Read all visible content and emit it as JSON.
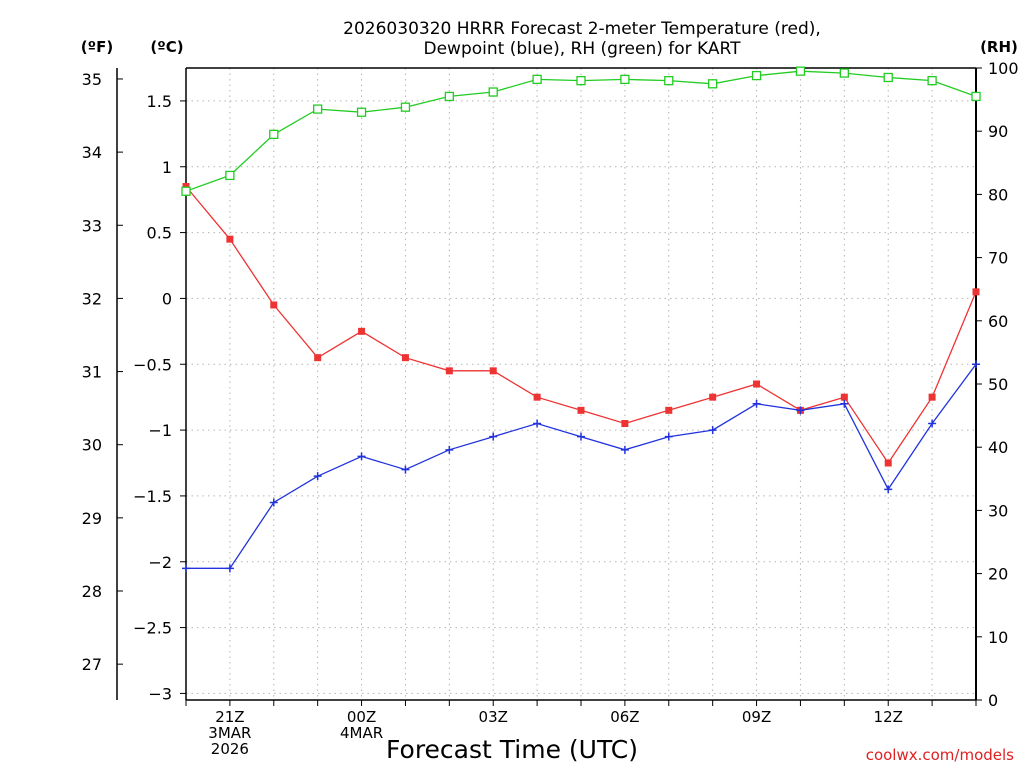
{
  "chart_data": {
    "type": "line",
    "title_lines": [
      "2026030320 HRRR Forecast 2-meter Temperature (red),",
      "Dewpoint (blue), RH (green) for KART"
    ],
    "xlabel": "Forecast Time (UTC)",
    "credit": "coolwx.com/models",
    "units": {
      "fahrenheit": "(ºF)",
      "celsius": "(ºC)",
      "rh": "(RH)"
    },
    "celsius_axis": {
      "lim": [
        -3.05,
        1.75
      ],
      "ticks": [
        1.5,
        1,
        0.5,
        0,
        -0.5,
        -1,
        -1.5,
        -2,
        -2.5,
        -3
      ],
      "tick_labels": [
        "1.5",
        "1",
        "0.5",
        "0",
        "−0.5",
        "−1",
        "−1.5",
        "−2",
        "−2.5",
        "−3"
      ]
    },
    "fahrenheit_axis": {
      "ticks": [
        35,
        34,
        33,
        32,
        31,
        30,
        29,
        28,
        27
      ],
      "tick_labels": [
        "35",
        "34",
        "33",
        "32",
        "31",
        "30",
        "29",
        "28",
        "27"
      ]
    },
    "rh_axis": {
      "lim": [
        0,
        100
      ],
      "ticks": [
        100,
        90,
        80,
        70,
        60,
        50,
        40,
        30,
        20,
        10,
        0
      ],
      "tick_labels": [
        "100",
        "90",
        "80",
        "70",
        "60",
        "50",
        "40",
        "30",
        "20",
        "10",
        "0"
      ]
    },
    "x_hours": [
      20,
      21,
      22,
      23,
      24,
      25,
      26,
      27,
      28,
      29,
      30,
      31,
      32,
      33,
      34,
      35,
      36,
      37,
      38
    ],
    "x_lim": [
      20,
      38
    ],
    "x_tick_labels": [
      {
        "hour": 21,
        "lines": [
          "21Z",
          "3MAR",
          "2026"
        ]
      },
      {
        "hour": 24,
        "lines": [
          "00Z",
          "4MAR"
        ]
      },
      {
        "hour": 27,
        "lines": [
          "03Z"
        ]
      },
      {
        "hour": 30,
        "lines": [
          "06Z"
        ]
      },
      {
        "hour": 33,
        "lines": [
          "09Z"
        ]
      },
      {
        "hour": 36,
        "lines": [
          "12Z"
        ]
      }
    ],
    "series": [
      {
        "name": "Temperature",
        "color": "#ee3333",
        "marker": "filled-square",
        "axis": "celsius",
        "values": [
          0.85,
          0.45,
          -0.05,
          -0.45,
          -0.25,
          -0.45,
          -0.55,
          -0.55,
          -0.75,
          -0.85,
          -0.95,
          -0.85,
          -0.75,
          -0.65,
          -0.85,
          -0.75,
          -1.25,
          -0.75,
          0.05
        ]
      },
      {
        "name": "Dewpoint",
        "color": "#2233dd",
        "marker": "plus",
        "axis": "celsius",
        "values": [
          -2.05,
          -2.05,
          -1.55,
          -1.35,
          -1.2,
          -1.3,
          -1.15,
          -1.05,
          -0.95,
          -1.05,
          -1.15,
          -1.05,
          -1.0,
          -0.8,
          -0.85,
          -0.8,
          -1.45,
          -0.95,
          -0.5
        ]
      },
      {
        "name": "RH",
        "color": "#22cc22",
        "marker": "open-square",
        "axis": "rh",
        "values": [
          80.5,
          83,
          89.5,
          93.5,
          93,
          93.8,
          95.5,
          96.2,
          98.2,
          98,
          98.2,
          98,
          97.5,
          98.8,
          99.5,
          99.2,
          98.5,
          98,
          95.5
        ]
      }
    ]
  }
}
